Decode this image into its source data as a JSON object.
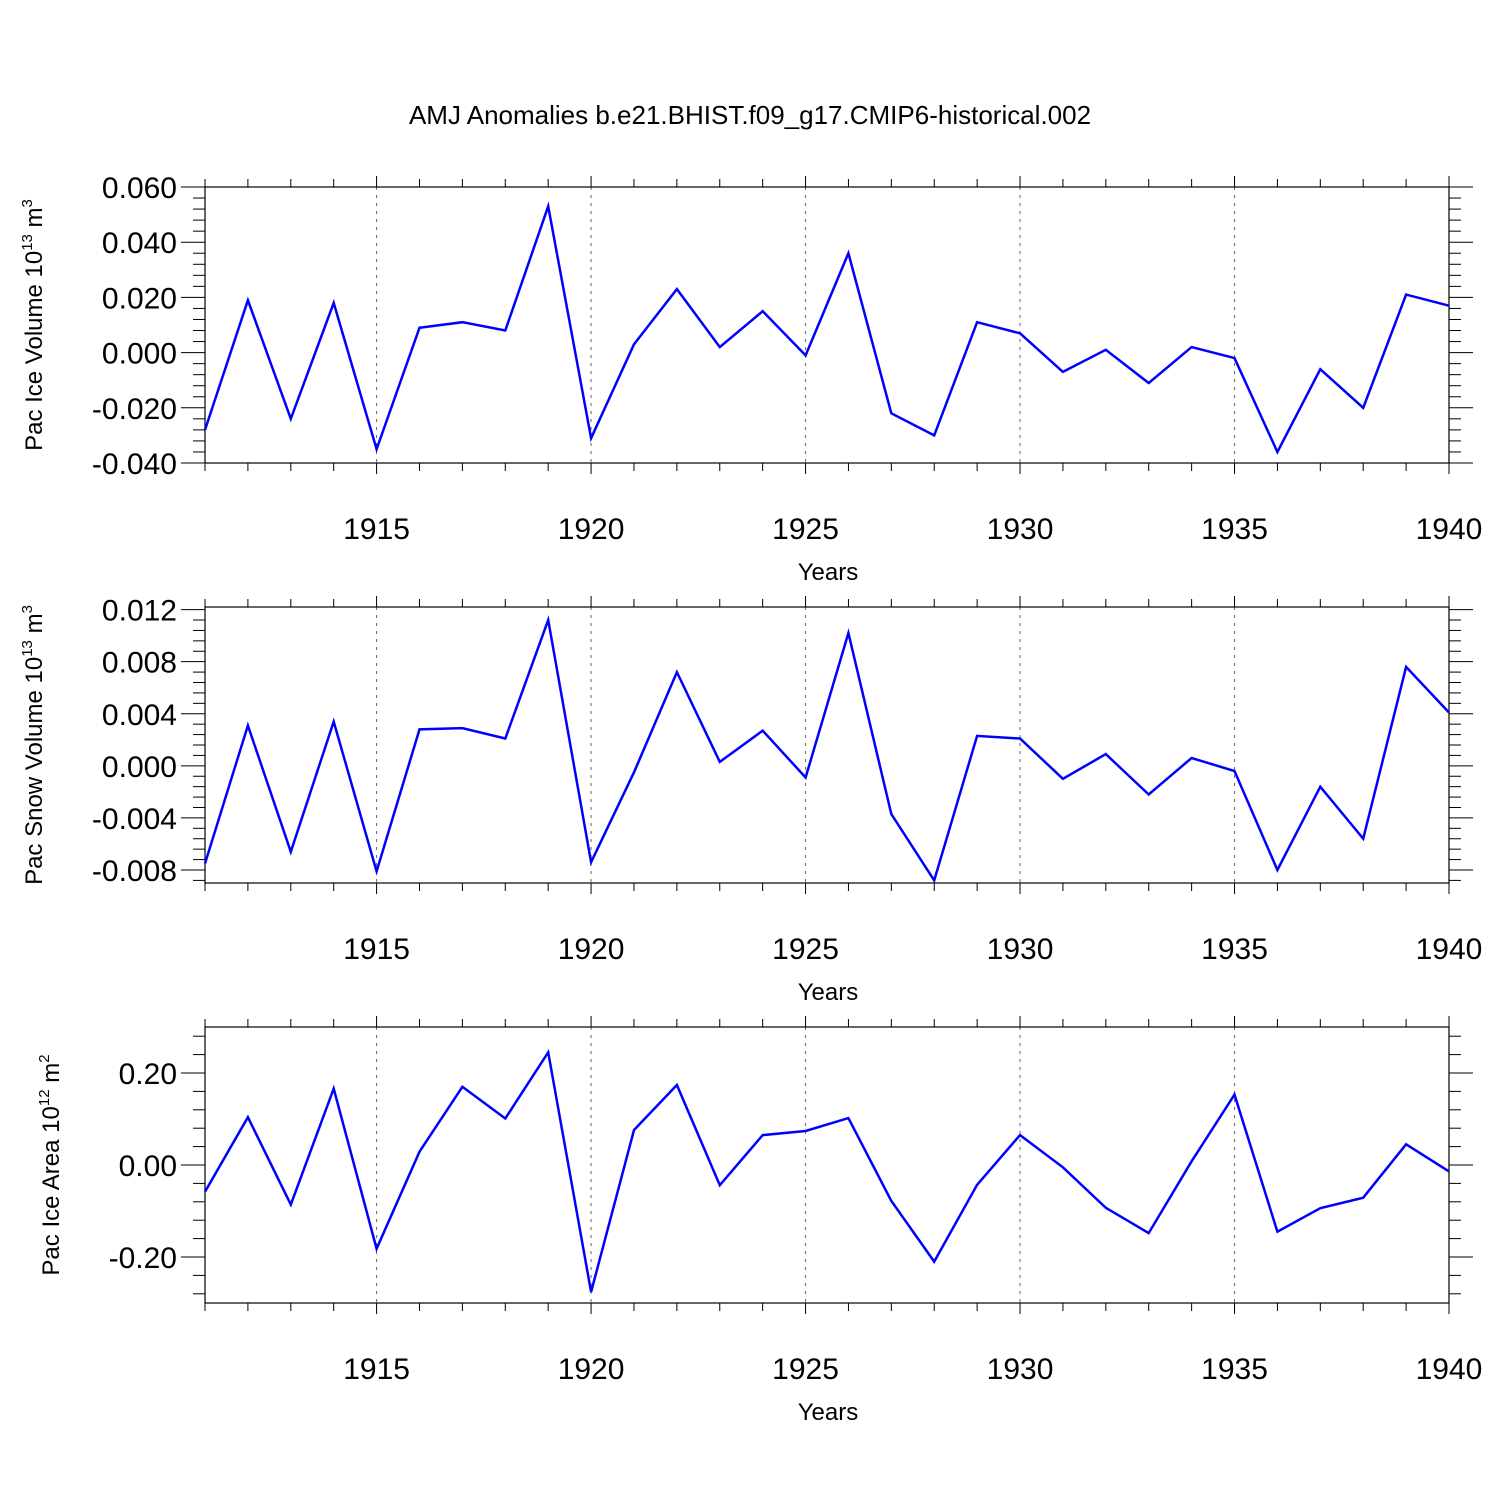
{
  "figure_title": "AMJ Anomalies b.e21.BHIST.f09_g17.CMIP6-historical.002",
  "colors": {
    "series": "#0000ff",
    "axes": "#000000",
    "grid": "#666666"
  },
  "chart_data": [
    {
      "type": "line",
      "title": "AMJ Anomalies b.e21.BHIST.f09_g17.CMIP6-historical.002",
      "xlabel": "Years",
      "ylabel": {
        "text": "Pac Ice Volume 10",
        "sup1": "13",
        "unit": " m",
        "sup2": "3"
      },
      "x": [
        1911,
        1912,
        1913,
        1914,
        1915,
        1916,
        1917,
        1918,
        1919,
        1920,
        1921,
        1922,
        1923,
        1924,
        1925,
        1926,
        1927,
        1928,
        1929,
        1930,
        1931,
        1932,
        1933,
        1934,
        1935,
        1936,
        1937,
        1938,
        1939,
        1940
      ],
      "values": [
        -0.028,
        0.019,
        -0.024,
        0.018,
        -0.035,
        0.009,
        0.011,
        0.008,
        0.053,
        -0.031,
        0.003,
        0.023,
        0.002,
        0.015,
        -0.001,
        0.036,
        -0.022,
        -0.03,
        0.011,
        0.007,
        -0.007,
        0.001,
        -0.011,
        0.002,
        -0.002,
        -0.036,
        -0.006,
        -0.02,
        0.021,
        0.017
      ],
      "xlim": [
        1911,
        1940
      ],
      "ylim": [
        -0.04,
        0.06
      ],
      "xticks": [
        1915,
        1920,
        1925,
        1930,
        1935,
        1940
      ],
      "xtick_labels": [
        "1915",
        "1920",
        "1925",
        "1930",
        "1935",
        "1940"
      ],
      "yticks": [
        -0.04,
        -0.02,
        0,
        0.02,
        0.04,
        0.06
      ],
      "ytick_labels": [
        "-0.040",
        "-0.020",
        "0.000",
        "0.020",
        "0.040",
        "0.060"
      ],
      "grid": "vertical dashed at major x ticks"
    },
    {
      "type": "line",
      "xlabel": "Years",
      "ylabel": {
        "text": "Pac Snow Volume 10",
        "sup1": "13",
        "unit": " m",
        "sup2": "3"
      },
      "x": [
        1911,
        1912,
        1913,
        1914,
        1915,
        1916,
        1917,
        1918,
        1919,
        1920,
        1921,
        1922,
        1923,
        1924,
        1925,
        1926,
        1927,
        1928,
        1929,
        1930,
        1931,
        1932,
        1933,
        1934,
        1935,
        1936,
        1937,
        1938,
        1939,
        1940
      ],
      "values": [
        -0.0075,
        0.0031,
        -0.0066,
        0.0034,
        -0.0081,
        0.0028,
        0.0029,
        0.0021,
        0.0112,
        -0.0074,
        -0.0005,
        0.0072,
        0.0003,
        0.0027,
        -0.0009,
        0.0102,
        -0.0037,
        -0.0088,
        0.0023,
        0.0021,
        -0.001,
        0.0009,
        -0.0022,
        0.0006,
        -0.0004,
        -0.008,
        -0.0016,
        -0.0056,
        0.0076,
        0.0041
      ],
      "xlim": [
        1911,
        1940
      ],
      "ylim": [
        -0.009,
        0.0122
      ],
      "xticks": [
        1915,
        1920,
        1925,
        1930,
        1935,
        1940
      ],
      "xtick_labels": [
        "1915",
        "1920",
        "1925",
        "1930",
        "1935",
        "1940"
      ],
      "yticks": [
        -0.008,
        -0.004,
        0,
        0.004,
        0.008,
        0.012
      ],
      "ytick_labels": [
        "-0.008",
        "-0.004",
        "0.000",
        "0.004",
        "0.008",
        "0.012"
      ],
      "grid": "vertical dashed at major x ticks"
    },
    {
      "type": "line",
      "xlabel": "Years",
      "ylabel": {
        "text": "Pac Ice Area 10",
        "sup1": "12",
        "unit": " m",
        "sup2": "2"
      },
      "x": [
        1911,
        1912,
        1913,
        1914,
        1915,
        1916,
        1917,
        1918,
        1919,
        1920,
        1921,
        1922,
        1923,
        1924,
        1925,
        1926,
        1927,
        1928,
        1929,
        1930,
        1931,
        1932,
        1933,
        1934,
        1935,
        1936,
        1937,
        1938,
        1939,
        1940
      ],
      "values": [
        -0.058,
        0.104,
        -0.086,
        0.166,
        -0.182,
        0.029,
        0.17,
        0.101,
        0.245,
        -0.276,
        0.076,
        0.174,
        -0.044,
        0.065,
        0.074,
        0.102,
        -0.078,
        -0.21,
        -0.043,
        0.065,
        -0.005,
        -0.093,
        -0.148,
        0.008,
        0.153,
        -0.145,
        -0.094,
        -0.071,
        0.045,
        -0.014
      ],
      "xlim": [
        1911,
        1940
      ],
      "ylim": [
        -0.3,
        0.3
      ],
      "xticks": [
        1915,
        1920,
        1925,
        1930,
        1935,
        1940
      ],
      "xtick_labels": [
        "1915",
        "1920",
        "1925",
        "1930",
        "1935",
        "1940"
      ],
      "yticks": [
        -0.2,
        0,
        0.2
      ],
      "ytick_labels": [
        "-0.20",
        "0.00",
        "0.20"
      ],
      "grid": "vertical dashed at major x ticks"
    }
  ]
}
